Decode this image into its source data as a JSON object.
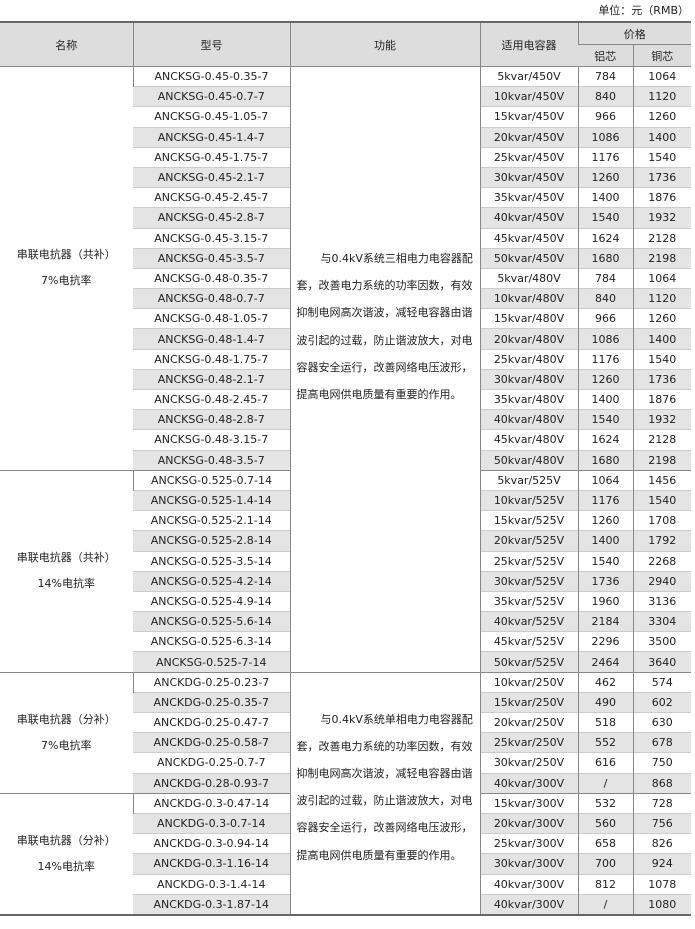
{
  "unit_label": "单位：元（RMB）",
  "headers": {
    "name": "名称",
    "model": "型号",
    "function": "功能",
    "capacitor": "适用电容器",
    "price": "价格",
    "aluminum": "铝芯",
    "copper": "铜芯"
  },
  "groups": [
    {
      "name_line1": "串联电抗器（共补）",
      "name_line2": "7%电抗率",
      "function_key": 0,
      "rows": [
        [
          "ANCKSG-0.45-0.35-7",
          "5kvar/450V",
          "784",
          "1064"
        ],
        [
          "ANCKSG-0.45-0.7-7",
          "10kvar/450V",
          "840",
          "1120"
        ],
        [
          "ANCKSG-0.45-1.05-7",
          "15kvar/450V",
          "966",
          "1260"
        ],
        [
          "ANCKSG-0.45-1.4-7",
          "20kvar/450V",
          "1086",
          "1400"
        ],
        [
          "ANCKSG-0.45-1.75-7",
          "25kvar/450V",
          "1176",
          "1540"
        ],
        [
          "ANCKSG-0.45-2.1-7",
          "30kvar/450V",
          "1260",
          "1736"
        ],
        [
          "ANCKSG-0.45-2.45-7",
          "35kvar/450V",
          "1400",
          "1876"
        ],
        [
          "ANCKSG-0.45-2.8-7",
          "40kvar/450V",
          "1540",
          "1932"
        ],
        [
          "ANCKSG-0.45-3.15-7",
          "45kvar/450V",
          "1624",
          "2128"
        ],
        [
          "ANCKSG-0.45-3.5-7",
          "50kvar/450V",
          "1680",
          "2198"
        ],
        [
          "ANCKSG-0.48-0.35-7",
          "5kvar/480V",
          "784",
          "1064"
        ],
        [
          "ANCKSG-0.48-0.7-7",
          "10kvar/480V",
          "840",
          "1120"
        ],
        [
          "ANCKSG-0.48-1.05-7",
          "15kvar/480V",
          "966",
          "1260"
        ],
        [
          "ANCKSG-0.48-1.4-7",
          "20kvar/480V",
          "1086",
          "1400"
        ],
        [
          "ANCKSG-0.48-1.75-7",
          "25kvar/480V",
          "1176",
          "1540"
        ],
        [
          "ANCKSG-0.48-2.1-7",
          "30kvar/480V",
          "1260",
          "1736"
        ],
        [
          "ANCKSG-0.48-2.45-7",
          "35kvar/480V",
          "1400",
          "1876"
        ],
        [
          "ANCKSG-0.48-2.8-7",
          "40kvar/480V",
          "1540",
          "1932"
        ],
        [
          "ANCKSG-0.48-3.15-7",
          "45kvar/480V",
          "1624",
          "2128"
        ],
        [
          "ANCKSG-0.48-3.5-7",
          "50kvar/480V",
          "1680",
          "2198"
        ]
      ]
    },
    {
      "name_line1": "串联电抗器（共补）",
      "name_line2": "14%电抗率",
      "rows": [
        [
          "ANCKSG-0.525-0.7-14",
          "5kvar/525V",
          "1064",
          "1456"
        ],
        [
          "ANCKSG-0.525-1.4-14",
          "10kvar/525V",
          "1176",
          "1540"
        ],
        [
          "ANCKSG-0.525-2.1-14",
          "15kvar/525V",
          "1260",
          "1708"
        ],
        [
          "ANCKSG-0.525-2.8-14",
          "20kvar/525V",
          "1400",
          "1792"
        ],
        [
          "ANCKSG-0.525-3.5-14",
          "25kvar/525V",
          "1540",
          "2268"
        ],
        [
          "ANCKSG-0.525-4.2-14",
          "30kvar/525V",
          "1736",
          "2940"
        ],
        [
          "ANCKSG-0.525-4.9-14",
          "35kvar/525V",
          "1960",
          "3136"
        ],
        [
          "ANCKSG-0.525-5.6-14",
          "40kvar/525V",
          "2184",
          "3304"
        ],
        [
          "ANCKSG-0.525-6.3-14",
          "45kvar/525V",
          "2296",
          "3500"
        ],
        [
          "ANCKSG-0.525-7-14",
          "50kvar/525V",
          "2464",
          "3640"
        ]
      ]
    },
    {
      "name_line1": "串联电抗器（分补）",
      "name_line2": "7%电抗率",
      "function_key": 1,
      "rows": [
        [
          "ANCKDG-0.25-0.23-7",
          "10kvar/250V",
          "462",
          "574"
        ],
        [
          "ANCKDG-0.25-0.35-7",
          "15kvar/250V",
          "490",
          "602"
        ],
        [
          "ANCKDG-0.25-0.47-7",
          "20kvar/250V",
          "518",
          "630"
        ],
        [
          "ANCKDG-0.25-0.58-7",
          "25kvar/250V",
          "552",
          "678"
        ],
        [
          "ANCKDG-0.25-0.7-7",
          "30kvar/250V",
          "616",
          "750"
        ],
        [
          "ANCKDG-0.28-0.93-7",
          "40kvar/300V",
          "/",
          "868"
        ]
      ]
    },
    {
      "name_line1": "串联电抗器（分补）",
      "name_line2": "14%电抗率",
      "rows": [
        [
          "ANCKDG-0.3-0.47-14",
          "15kvar/300V",
          "532",
          "728"
        ],
        [
          "ANCKDG-0.3-0.7-14",
          "20kvar/300V",
          "560",
          "756"
        ],
        [
          "ANCKDG-0.3-0.94-14",
          "25kvar/300V",
          "658",
          "826"
        ],
        [
          "ANCKDG-0.3-1.16-14",
          "30kvar/300V",
          "700",
          "924"
        ],
        [
          "ANCKDG-0.3-1.4-14",
          "40kvar/300V",
          "812",
          "1078"
        ],
        [
          "ANCKDG-0.3-1.87-14",
          "40kvar/300V",
          "/",
          "1080"
        ]
      ]
    }
  ],
  "functions": [
    {
      "text": "与0.4kV系统三相电力电容器配套，改善电力系统的功率因数，有效抑制电网高次谐波，减轻电容器由谐波引起的过载，防止谐波放大，对电容器安全运行，改善网络电压波形，提高电网供电质量有重要的作用。"
    },
    {
      "text": "与0.4kV系统单相电力电容器配套，改善电力系统的功率因数，有效抑制电网高次谐波，减轻电容器由谐波引起的过载，防止谐波放大，对电容器安全运行，改善网络电压波形，提高电网供电质量有重要的作用。"
    }
  ]
}
